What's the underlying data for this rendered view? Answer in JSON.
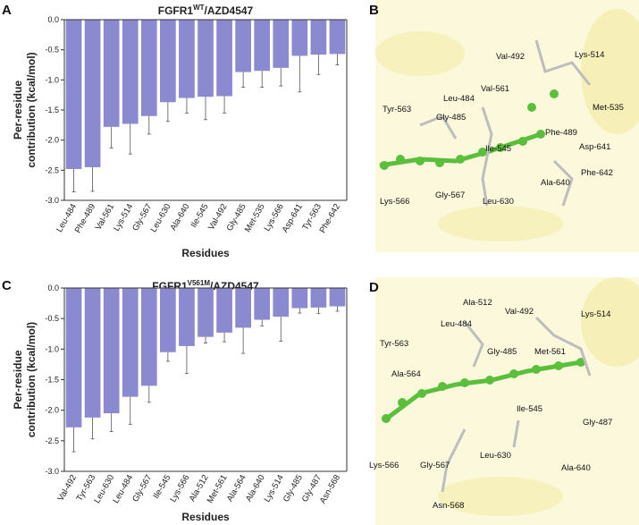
{
  "chart_data": [
    {
      "type": "bar",
      "panel": "A",
      "title_parts": [
        "FGFR1",
        "WT",
        "/AZD4547"
      ],
      "xlabel": "Residues",
      "ylabel": [
        "Per-residue",
        "contribution (kcal/mol)"
      ],
      "categories": [
        "Leu-484",
        "Phe-489",
        "Val-561",
        "Lys-514",
        "Gly-567",
        "Leu-630",
        "Ala-640",
        "Ile-545",
        "Val-492",
        "Gly-485",
        "Met-535",
        "Lys-566",
        "Asp-641",
        "Tyr-563",
        "Phe-642"
      ],
      "values": [
        -2.48,
        -2.45,
        -1.78,
        -1.73,
        -1.6,
        -1.37,
        -1.3,
        -1.28,
        -1.27,
        -0.87,
        -0.85,
        -0.8,
        -0.6,
        -0.58,
        -0.57
      ],
      "errors": [
        0.38,
        0.4,
        0.35,
        0.5,
        0.3,
        0.32,
        0.25,
        0.38,
        0.28,
        0.25,
        0.27,
        0.3,
        0.6,
        0.33,
        0.18
      ],
      "color": "#8b89cf",
      "ylim": [
        -3,
        0
      ],
      "yticks": [
        {
          "value": 0,
          "label": "0.0"
        },
        {
          "value": -0.5,
          "label": "-0.5"
        },
        {
          "value": -1,
          "label": "-1.0"
        },
        {
          "value": -1.5,
          "label": "-1.5"
        },
        {
          "value": -2,
          "label": "-2.0"
        },
        {
          "value": -2.5,
          "label": "-2.5"
        },
        {
          "value": -3,
          "label": "-3.0"
        }
      ]
    },
    {
      "type": "bar",
      "panel": "C",
      "title_parts": [
        "FGFR1",
        "V561M",
        "/AZD4547"
      ],
      "xlabel": "Residues",
      "ylabel": [
        "Per-residue",
        "contribution (kcal/mol)"
      ],
      "categories": [
        "Val-492",
        "Tyr-563",
        "Leu-630",
        "Leu-484",
        "Gly-567",
        "Ile-545",
        "Lys-566",
        "Ala-512",
        "Met-561",
        "Ala-564",
        "Ala-640",
        "Lys-514",
        "Gly-485",
        "Gly-487",
        "Asn-568"
      ],
      "values": [
        -2.28,
        -2.12,
        -2.05,
        -1.78,
        -1.6,
        -1.05,
        -0.95,
        -0.8,
        -0.73,
        -0.65,
        -0.52,
        -0.47,
        -0.33,
        -0.32,
        -0.3
      ],
      "errors": [
        0.4,
        0.35,
        0.3,
        0.45,
        0.27,
        0.15,
        0.45,
        0.1,
        0.15,
        0.42,
        0.1,
        0.4,
        0.08,
        0.1,
        0.08
      ],
      "color": "#8b89cf",
      "ylim": [
        -3,
        0
      ],
      "yticks": [
        {
          "value": 0,
          "label": "0.0"
        },
        {
          "value": -0.5,
          "label": "-0.5"
        },
        {
          "value": -1,
          "label": "-1.0"
        },
        {
          "value": -1.5,
          "label": "-1.5"
        },
        {
          "value": -2,
          "label": "-2.0"
        },
        {
          "value": -2.5,
          "label": "-2.5"
        },
        {
          "value": -3,
          "label": "-3.0"
        }
      ]
    }
  ],
  "structures": [
    {
      "panel": "B",
      "labels": [
        "Val-492",
        "Lys-514",
        "Val-561",
        "Leu-484",
        "Tyr-563",
        "Gly-485",
        "Met-535",
        "Phe-489",
        "Ile-545",
        "Asp-641",
        "Phe-642",
        "Ala-640",
        "Lys-566",
        "Gly-567",
        "Leu-630"
      ]
    },
    {
      "panel": "D",
      "labels": [
        "Ala-512",
        "Val-492",
        "Lys-514",
        "Leu-484",
        "Tyr-563",
        "Gly-485",
        "Met-561",
        "Ala-564",
        "Ile-545",
        "Gly-487",
        "Lys-566",
        "Gly-567",
        "Leu-630",
        "Ala-640",
        "Asn-568"
      ]
    }
  ]
}
